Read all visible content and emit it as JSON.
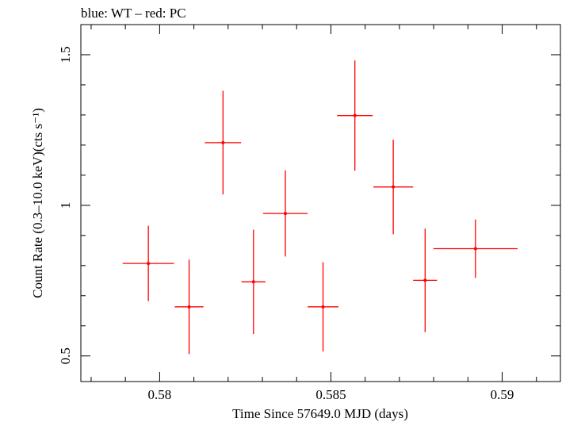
{
  "header": {
    "label": "blue: WT – red: PC"
  },
  "colors": {
    "pc": "#ff0000",
    "axis": "#000000",
    "background": "#ffffff"
  },
  "chart_data": {
    "type": "scatter",
    "title": "",
    "xlabel": "Time Since 57649.0 MJD (days)",
    "ylabel": "Count Rate (0.3–10.0 keV)(cts s⁻¹)",
    "xlim": [
      0.5777,
      0.5917
    ],
    "ylim": [
      0.415,
      1.6
    ],
    "xticks": [
      {
        "value": 0.58,
        "label": "0.58"
      },
      {
        "value": 0.585,
        "label": "0.585"
      },
      {
        "value": 0.59,
        "label": "0.59"
      }
    ],
    "yticks": [
      {
        "value": 0.5,
        "label": "0.5"
      },
      {
        "value": 1.0,
        "label": "1"
      },
      {
        "value": 1.5,
        "label": "1.5"
      }
    ],
    "series": [
      {
        "name": "PC",
        "color": "#ff0000",
        "points": [
          {
            "x": 0.57967,
            "y": 0.807,
            "xerr": 0.00075,
            "yerr": 0.125
          },
          {
            "x": 0.58086,
            "y": 0.663,
            "xerr": 0.00042,
            "yerr": 0.157
          },
          {
            "x": 0.58185,
            "y": 1.208,
            "xerr": 0.00053,
            "yerr": 0.172
          },
          {
            "x": 0.58274,
            "y": 0.746,
            "xerr": 0.00035,
            "yerr": 0.173
          },
          {
            "x": 0.58367,
            "y": 0.973,
            "xerr": 0.00065,
            "yerr": 0.143
          },
          {
            "x": 0.58477,
            "y": 0.663,
            "xerr": 0.00045,
            "yerr": 0.148
          },
          {
            "x": 0.5857,
            "y": 1.298,
            "xerr": 0.00052,
            "yerr": 0.183
          },
          {
            "x": 0.58682,
            "y": 1.061,
            "xerr": 0.00058,
            "yerr": 0.157
          },
          {
            "x": 0.58775,
            "y": 0.751,
            "xerr": 0.00035,
            "yerr": 0.172
          },
          {
            "x": 0.58922,
            "y": 0.856,
            "xerr": 0.00123,
            "yerr": 0.097
          }
        ]
      }
    ]
  }
}
